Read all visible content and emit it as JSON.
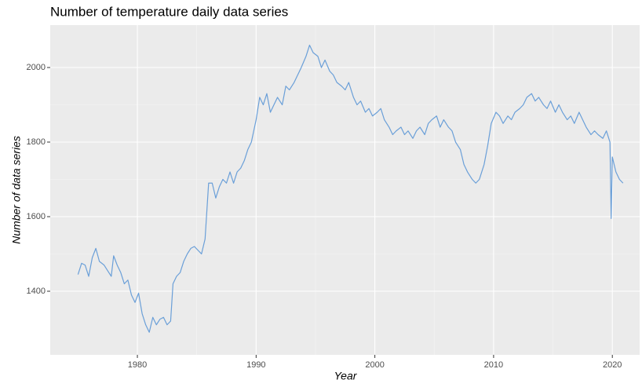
{
  "chart_data": {
    "type": "line",
    "title": "Number of temperature daily data series",
    "x_label": "Year",
    "y_label": "Number of data series",
    "color": "#6a9fd8",
    "grid": true,
    "x": [
      1975.0,
      1975.3,
      1975.6,
      1975.9,
      1976.2,
      1976.5,
      1976.8,
      1977.2,
      1977.5,
      1977.8,
      1978.0,
      1978.3,
      1978.6,
      1978.9,
      1979.2,
      1979.5,
      1979.8,
      1980.1,
      1980.4,
      1980.7,
      1981.0,
      1981.3,
      1981.6,
      1981.9,
      1982.2,
      1982.5,
      1982.8,
      1983.0,
      1983.3,
      1983.6,
      1983.9,
      1984.2,
      1984.5,
      1984.8,
      1985.1,
      1985.4,
      1985.7,
      1986.0,
      1986.3,
      1986.6,
      1986.9,
      1987.2,
      1987.5,
      1987.8,
      1988.1,
      1988.4,
      1988.7,
      1989.0,
      1989.3,
      1989.6,
      1990.0,
      1990.3,
      1990.6,
      1990.9,
      1991.2,
      1991.5,
      1991.8,
      1992.2,
      1992.5,
      1992.8,
      1993.2,
      1993.5,
      1993.8,
      1994.2,
      1994.5,
      1994.8,
      1995.2,
      1995.5,
      1995.8,
      1996.2,
      1996.5,
      1996.8,
      1997.2,
      1997.5,
      1997.8,
      1998.2,
      1998.5,
      1998.8,
      1999.2,
      1999.5,
      1999.8,
      2000.2,
      2000.5,
      2000.8,
      2001.2,
      2001.5,
      2001.8,
      2002.2,
      2002.5,
      2002.8,
      2003.2,
      2003.5,
      2003.8,
      2004.2,
      2004.5,
      2004.8,
      2005.2,
      2005.5,
      2005.8,
      2006.2,
      2006.5,
      2006.8,
      2007.2,
      2007.5,
      2007.8,
      2008.2,
      2008.5,
      2008.8,
      2009.2,
      2009.5,
      2009.8,
      2010.2,
      2010.5,
      2010.8,
      2011.2,
      2011.5,
      2011.8,
      2012.2,
      2012.5,
      2012.8,
      2013.2,
      2013.5,
      2013.8,
      2014.2,
      2014.5,
      2014.8,
      2015.2,
      2015.5,
      2015.8,
      2016.2,
      2016.5,
      2016.8,
      2017.2,
      2017.5,
      2017.8,
      2018.2,
      2018.5,
      2018.8,
      2019.2,
      2019.5,
      2019.8,
      2019.9,
      2020.0,
      2020.3,
      2020.6,
      2020.9
    ],
    "values": [
      1445,
      1475,
      1470,
      1440,
      1490,
      1515,
      1480,
      1470,
      1455,
      1440,
      1495,
      1470,
      1450,
      1420,
      1430,
      1390,
      1370,
      1395,
      1340,
      1310,
      1290,
      1330,
      1310,
      1325,
      1330,
      1310,
      1320,
      1420,
      1440,
      1450,
      1480,
      1500,
      1515,
      1520,
      1510,
      1500,
      1540,
      1690,
      1690,
      1650,
      1680,
      1700,
      1690,
      1720,
      1690,
      1720,
      1730,
      1750,
      1780,
      1800,
      1860,
      1920,
      1900,
      1930,
      1880,
      1900,
      1920,
      1900,
      1950,
      1940,
      1960,
      1980,
      2000,
      2030,
      2060,
      2040,
      2030,
      2000,
      2020,
      1990,
      1980,
      1960,
      1950,
      1940,
      1960,
      1920,
      1900,
      1910,
      1880,
      1890,
      1870,
      1880,
      1890,
      1860,
      1840,
      1820,
      1830,
      1840,
      1820,
      1830,
      1810,
      1830,
      1840,
      1820,
      1850,
      1860,
      1870,
      1840,
      1860,
      1840,
      1830,
      1800,
      1780,
      1740,
      1720,
      1700,
      1690,
      1700,
      1740,
      1790,
      1850,
      1880,
      1870,
      1850,
      1870,
      1860,
      1880,
      1890,
      1900,
      1920,
      1930,
      1910,
      1920,
      1900,
      1890,
      1910,
      1880,
      1900,
      1880,
      1860,
      1870,
      1850,
      1880,
      1860,
      1840,
      1820,
      1830,
      1820,
      1810,
      1830,
      1800,
      1595,
      1760,
      1720,
      1700,
      1690
    ],
    "xlim": [
      1972.66,
      2022.3
    ],
    "ylim": [
      1229.5,
      2113.7
    ],
    "xticks": [
      1980,
      1990,
      2000,
      2010,
      2020
    ],
    "yticks": [
      1400,
      1600,
      1800,
      2000
    ]
  }
}
